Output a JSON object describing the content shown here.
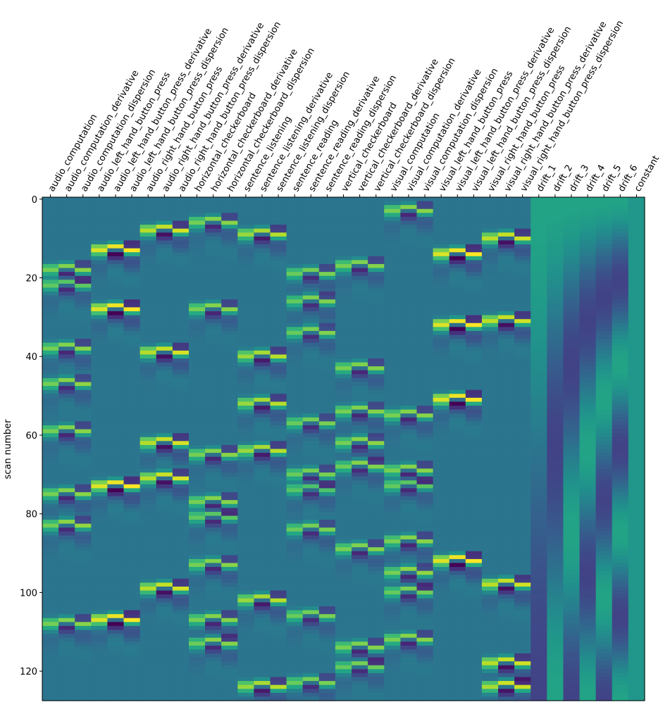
{
  "chart_data": {
    "type": "heatmap",
    "title": "",
    "ylabel": "scan number",
    "xlabel": "",
    "n_scans": 128,
    "yticks": [
      0,
      20,
      40,
      60,
      80,
      100,
      120
    ],
    "colormap": "viridis",
    "grid": false,
    "columns": [
      "audio_computation",
      "audio_computation_derivative",
      "audio_computation_dispersion",
      "audio_left_hand_button_press",
      "audio_left_hand_button_press_derivative",
      "audio_left_hand_button_press_dispersion",
      "audio_right_hand_button_press",
      "audio_right_hand_button_press_derivative",
      "audio_right_hand_button_press_dispersion",
      "horizontal_checkerboard",
      "horizontal_checkerboard_derivative",
      "horizontal_checkerboard_dispersion",
      "sentence_listening",
      "sentence_listening_derivative",
      "sentence_listening_dispersion",
      "sentence_reading",
      "sentence_reading_derivative",
      "sentence_reading_dispersion",
      "vertical_checkerboard",
      "vertical_checkerboard_derivative",
      "vertical_checkerboard_dispersion",
      "visual_computation",
      "visual_computation_derivative",
      "visual_computation_dispersion",
      "visual_left_hand_button_press",
      "visual_left_hand_button_press_derivative",
      "visual_left_hand_button_press_dispersion",
      "visual_right_hand_button_press",
      "visual_right_hand_button_press_derivative",
      "visual_right_hand_button_press_dispersion",
      "drift_1",
      "drift_2",
      "drift_3",
      "drift_4",
      "drift_5",
      "drift_6",
      "constant"
    ],
    "event_onsets_scan": {
      "audio_computation": [
        15,
        19,
        35,
        44,
        56,
        72,
        80,
        105
      ],
      "audio_left_hand_button_press": [
        10,
        25,
        70,
        104
      ],
      "audio_right_hand_button_press": [
        5,
        36,
        59,
        68,
        96
      ],
      "horizontal_checkerboard": [
        3,
        25,
        62,
        74,
        78,
        90,
        104,
        110
      ],
      "sentence_listening": [
        6,
        37,
        49,
        61,
        99,
        121
      ],
      "sentence_reading": [
        16,
        23,
        31,
        54,
        67,
        71,
        81,
        103,
        120
      ],
      "vertical_checkerboard": [
        14,
        40,
        51,
        59,
        65,
        86,
        111,
        116
      ],
      "visual_computation": [
        0,
        52,
        66,
        70,
        84,
        92,
        97,
        109
      ],
      "visual_left_hand_button_press": [
        11,
        29,
        48,
        89
      ],
      "visual_right_hand_button_press": [
        7,
        28,
        95,
        115,
        121
      ]
    }
  }
}
